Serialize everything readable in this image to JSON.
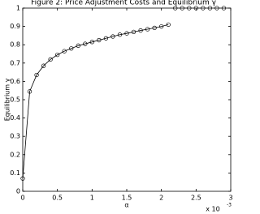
{
  "chart_data": {
    "type": "line",
    "title": "Figure 2: Price Adjustment Costs and Equilibrium γ",
    "xlabel": "α",
    "ylabel": "Equilibrium γ",
    "x_multiplier": "x 10",
    "x_multiplier_exponent": "-3",
    "series": [
      {
        "color": "#000000",
        "line": true,
        "marker": "circle",
        "x": [
          0,
          0.1,
          0.2,
          0.3,
          0.4,
          0.5,
          0.6,
          0.7,
          0.8,
          0.9,
          1.0,
          1.1,
          1.2,
          1.3,
          1.4,
          1.5,
          1.6,
          1.7,
          1.8,
          1.9,
          2.0,
          2.1
        ],
        "values": [
          0.07,
          0.545,
          0.635,
          0.685,
          0.72,
          0.745,
          0.765,
          0.78,
          0.795,
          0.805,
          0.815,
          0.825,
          0.835,
          0.845,
          0.855,
          0.862,
          0.87,
          0.878,
          0.885,
          0.892,
          0.9,
          0.91
        ]
      },
      {
        "color": "#000000",
        "line": false,
        "marker": "circle",
        "x": [
          2.2,
          2.3,
          2.4,
          2.5,
          2.6,
          2.7,
          2.8,
          2.9
        ],
        "values": [
          1,
          1,
          1,
          1,
          1,
          1,
          1,
          1
        ]
      }
    ],
    "xlim": [
      0,
      3
    ],
    "xticks": [
      0,
      0.5,
      1,
      1.5,
      2,
      2.5,
      3
    ],
    "ylim": [
      0,
      1
    ],
    "yticks": [
      0,
      0.1,
      0.2,
      0.3,
      0.4,
      0.5,
      0.6,
      0.7,
      0.8,
      0.9,
      1
    ],
    "grid": false
  }
}
